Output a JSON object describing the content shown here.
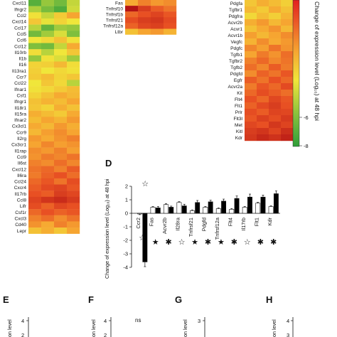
{
  "heatmap_left": {
    "genes": [
      "Cxcl11",
      "Ifngr2",
      "Ccl2",
      "Cxcl14",
      "Ccl17",
      "Ccl5",
      "Ccl6",
      "Ccl12",
      "Il10rb",
      "Il1b",
      "Il16",
      "Il13ra1",
      "Ccr7",
      "Ccl22",
      "Ifnar1",
      "Csf1",
      "Ifngr1",
      "Il18r1",
      "Il15ra",
      "Ifnar2",
      "Cx3cl1",
      "Ccr9",
      "Il2rg",
      "Cx3cr1",
      "Il1rap",
      "Ccl9",
      "Il6st",
      "Cxcl12",
      "Il6ra",
      "Ccl24",
      "Cxcr4",
      "Il17rb",
      "Ccl8",
      "Lifr",
      "Csf1r",
      "Cxcl3",
      "Cd40",
      "Lepr"
    ],
    "values": [
      [
        -1.4,
        -0.6,
        -1.0,
        -0.2
      ],
      [
        -0.4,
        -0.9,
        -1.5,
        -0.1
      ],
      [
        0.3,
        -0.2,
        0.8,
        1.6
      ],
      [
        0.9,
        0.1,
        0.6,
        0.2
      ],
      [
        -0.3,
        -1.2,
        -0.5,
        -0.6
      ],
      [
        -1.0,
        -0.5,
        0.0,
        -0.8
      ],
      [
        0.2,
        0.5,
        1.0,
        0.3
      ],
      [
        -0.8,
        -1.0,
        -0.2,
        1.5
      ],
      [
        0.4,
        -0.3,
        0.2,
        0.9
      ],
      [
        -0.6,
        0.3,
        0.0,
        -0.5
      ],
      [
        0.6,
        0.7,
        1.2,
        0.4
      ],
      [
        0.7,
        0.2,
        0.5,
        0.3
      ],
      [
        0.8,
        1.1,
        0.6,
        0.9
      ],
      [
        0.2,
        0.9,
        0.5,
        -0.3
      ],
      [
        0.3,
        0.5,
        0.8,
        1.1
      ],
      [
        0.6,
        1.0,
        1.5,
        1.2
      ],
      [
        1.0,
        1.3,
        1.1,
        1.6
      ],
      [
        0.9,
        0.6,
        1.4,
        1.0
      ],
      [
        1.4,
        1.1,
        0.8,
        1.5
      ],
      [
        1.1,
        1.6,
        1.3,
        1.8
      ],
      [
        1.5,
        1.2,
        1.8,
        1.4
      ],
      [
        1.2,
        1.7,
        2.0,
        1.6
      ],
      [
        1.8,
        1.5,
        1.9,
        2.2
      ],
      [
        1.6,
        2.1,
        1.7,
        1.9
      ],
      [
        2.0,
        1.8,
        2.2,
        1.7
      ],
      [
        1.9,
        2.3,
        2.1,
        2.4
      ],
      [
        2.2,
        2.0,
        2.5,
        2.1
      ],
      [
        2.4,
        2.6,
        2.2,
        2.8
      ],
      [
        2.3,
        2.7,
        3.0,
        2.5
      ],
      [
        2.6,
        2.9,
        2.4,
        3.1
      ],
      [
        2.8,
        3.2,
        3.4,
        2.9
      ],
      [
        3.0,
        2.8,
        3.6,
        3.3
      ],
      [
        3.4,
        3.9,
        4.2,
        3.7
      ],
      [
        3.1,
        2.7,
        3.3,
        3.0
      ],
      [
        2.6,
        3.0,
        2.7,
        2.9
      ],
      [
        2.2,
        2.5,
        2.0,
        2.4
      ],
      [
        1.9,
        1.5,
        2.2,
        1.8
      ],
      [
        1.0,
        1.4,
        0.9,
        1.6
      ]
    ]
  },
  "heatmap_mid": {
    "genes": [
      "Fas",
      "Tnfrsf10",
      "Tnfrsf1b",
      "Tnfrsf21",
      "Tnfrsf12a",
      "Ltbr"
    ],
    "values": [
      [
        1.5,
        2.2,
        1.8,
        2.0
      ],
      [
        5.2,
        3.6,
        2.8,
        2.4
      ],
      [
        2.6,
        3.0,
        3.4,
        2.9
      ],
      [
        3.1,
        3.6,
        3.8,
        3.2
      ],
      [
        2.7,
        3.3,
        3.5,
        3.0
      ],
      [
        1.0,
        1.6,
        1.8,
        1.3
      ]
    ]
  },
  "heatmap_right": {
    "genes": [
      "Pdgfa",
      "Tgfbr1",
      "Pdgfra",
      "Acvr2b",
      "Acvr1",
      "Acvr1b",
      "Vegfc",
      "Pdgfc",
      "Tgfb1",
      "Tgfbr2",
      "Tgfb2",
      "Pdgfd",
      "Egfr",
      "Acvr2a",
      "Kit",
      "Flt4",
      "Flt1",
      "Prlr",
      "Flt3l",
      "Met",
      "Kitl",
      "Kdr"
    ],
    "values": [
      [
        0.9,
        1.4,
        1.1,
        0.7
      ],
      [
        1.2,
        0.8,
        1.5,
        1.0
      ],
      [
        0.5,
        1.1,
        0.7,
        1.3
      ],
      [
        1.4,
        1.8,
        1.2,
        1.6
      ],
      [
        1.0,
        1.5,
        1.9,
        1.2
      ],
      [
        1.7,
        1.2,
        1.6,
        2.0
      ],
      [
        1.3,
        2.0,
        1.5,
        1.8
      ],
      [
        2.1,
        1.7,
        2.4,
        1.9
      ],
      [
        1.6,
        2.3,
        1.9,
        2.5
      ],
      [
        2.2,
        2.6,
        2.1,
        2.4
      ],
      [
        2.5,
        2.1,
        2.8,
        2.3
      ],
      [
        2.0,
        2.7,
        2.4,
        2.9
      ],
      [
        2.8,
        2.4,
        3.0,
        2.6
      ],
      [
        2.3,
        2.9,
        2.6,
        3.2
      ],
      [
        2.6,
        3.1,
        2.8,
        2.5
      ],
      [
        3.0,
        2.6,
        3.3,
        2.9
      ],
      [
        2.7,
        3.2,
        3.6,
        3.0
      ],
      [
        3.1,
        2.8,
        3.4,
        3.3
      ],
      [
        2.9,
        3.5,
        3.1,
        3.7
      ],
      [
        3.3,
        3.0,
        3.8,
        3.4
      ],
      [
        3.6,
        3.9,
        3.4,
        4.1
      ],
      [
        3.8,
        4.3,
        4.0,
        4.5
      ]
    ]
  },
  "colorbar": {
    "title": "Change of expression level (Log₁₀) at 48 hpi",
    "ticks": [
      "-6",
      "-8"
    ]
  },
  "panels": {
    "D": "D",
    "E": "E",
    "F": "F",
    "G": "G",
    "H": "H"
  },
  "chart_data": {
    "type": "bar",
    "panel": "D",
    "categories": [
      "Ccr2",
      "Fas",
      "Acvr2b",
      "Il28ra",
      "Tnfrsf21",
      "Pdgfd",
      "Tnfrsf12a",
      "Flt4",
      "Il17rb",
      "Flt1",
      "Kdr"
    ],
    "series": [
      {
        "values": [
          -0.05,
          0.45,
          0.65,
          0.8,
          0.2,
          0.45,
          0.35,
          0.3,
          0.45,
          0.75,
          0.5
        ],
        "color": "#ffffff"
      },
      {
        "values": [
          -3.6,
          0.4,
          0.45,
          0.55,
          0.8,
          0.85,
          0.9,
          1.1,
          1.2,
          1.2,
          1.45
        ],
        "color": "#000000"
      }
    ],
    "errors": [
      [
        0.05,
        0.05,
        0.06,
        0.06,
        0.05,
        0.05,
        0.05,
        0.05,
        0.05,
        0.06,
        0.05
      ],
      [
        0.35,
        0.1,
        0.08,
        0.12,
        0.15,
        0.12,
        0.15,
        0.18,
        0.22,
        0.15,
        0.2
      ]
    ],
    "markers": [
      "☆",
      "★",
      "✱",
      "☆",
      "★",
      "✱",
      "★",
      "✱",
      "☆",
      "✱",
      "✱"
    ],
    "top_marker": "☆",
    "ylabel": "Change of expression level (Log₁₀) at 48 hpi",
    "ylim": [
      -4,
      2
    ],
    "yticks": [
      "2",
      "1",
      "0",
      "-1",
      "-2",
      "-3",
      "-4"
    ]
  },
  "lower_panels": {
    "E": {
      "ylabel": "on level",
      "ticks": [
        "4",
        "2"
      ]
    },
    "F": {
      "ylabel": "on level",
      "ticks": [
        "4",
        "2"
      ],
      "annotation": "ns"
    },
    "G": {
      "ylabel": "on level",
      "ticks": [
        "3"
      ]
    },
    "H": {
      "ylabel": "on level",
      "ticks": [
        "4",
        "3"
      ]
    }
  }
}
